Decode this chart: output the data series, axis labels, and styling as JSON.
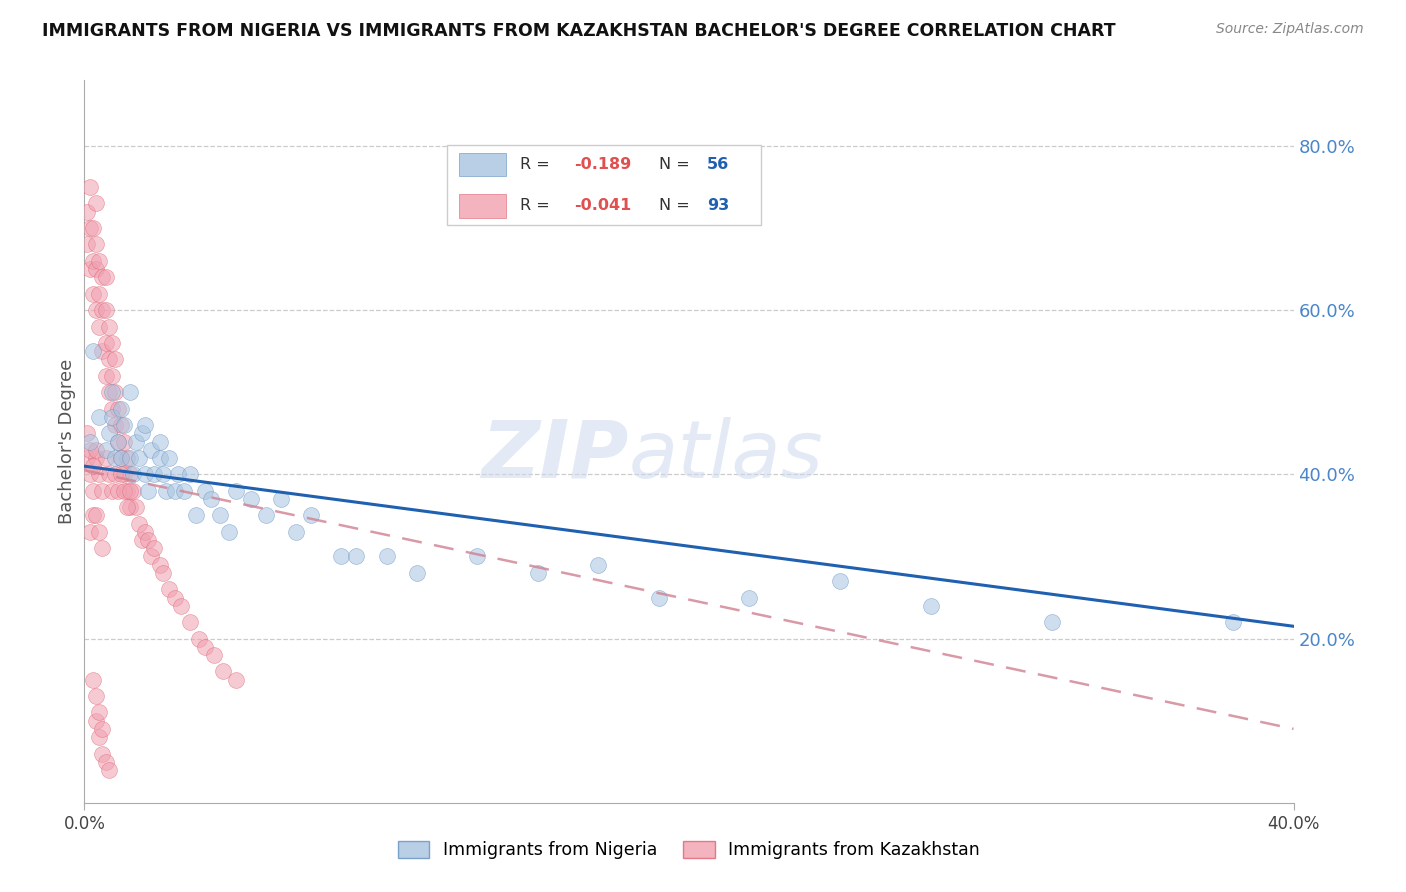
{
  "title": "IMMIGRANTS FROM NIGERIA VS IMMIGRANTS FROM KAZAKHSTAN BACHELOR'S DEGREE CORRELATION CHART",
  "source": "Source: ZipAtlas.com",
  "ylabel": "Bachelor's Degree",
  "right_yticks": [
    20.0,
    40.0,
    60.0,
    80.0
  ],
  "watermark": "ZIPatlas",
  "legend_nigeria": {
    "label": "Immigrants from Nigeria",
    "R": "-0.189",
    "N": "56",
    "color": "#a8c4e0"
  },
  "legend_kazakhstan": {
    "label": "Immigrants from Kazakhstan",
    "R": "-0.041",
    "N": "93",
    "color": "#f0a0b0"
  },
  "nigeria_scatter_x": [
    0.002,
    0.003,
    0.005,
    0.007,
    0.008,
    0.009,
    0.01,
    0.011,
    0.012,
    0.013,
    0.015,
    0.016,
    0.017,
    0.018,
    0.019,
    0.02,
    0.021,
    0.022,
    0.023,
    0.025,
    0.026,
    0.027,
    0.028,
    0.03,
    0.031,
    0.033,
    0.035,
    0.037,
    0.04,
    0.042,
    0.045,
    0.048,
    0.05,
    0.055,
    0.06,
    0.065,
    0.07,
    0.075,
    0.085,
    0.09,
    0.1,
    0.11,
    0.13,
    0.15,
    0.17,
    0.19,
    0.22,
    0.25,
    0.28,
    0.32,
    0.38,
    0.009,
    0.012,
    0.015,
    0.02,
    0.025
  ],
  "nigeria_scatter_y": [
    0.44,
    0.55,
    0.47,
    0.43,
    0.45,
    0.47,
    0.42,
    0.44,
    0.42,
    0.46,
    0.42,
    0.4,
    0.44,
    0.42,
    0.45,
    0.4,
    0.38,
    0.43,
    0.4,
    0.42,
    0.4,
    0.38,
    0.42,
    0.38,
    0.4,
    0.38,
    0.4,
    0.35,
    0.38,
    0.37,
    0.35,
    0.33,
    0.38,
    0.37,
    0.35,
    0.37,
    0.33,
    0.35,
    0.3,
    0.3,
    0.3,
    0.28,
    0.3,
    0.28,
    0.29,
    0.25,
    0.25,
    0.27,
    0.24,
    0.22,
    0.22,
    0.5,
    0.48,
    0.5,
    0.46,
    0.44
  ],
  "kazakhstan_scatter_x": [
    0.001,
    0.001,
    0.002,
    0.002,
    0.002,
    0.003,
    0.003,
    0.003,
    0.004,
    0.004,
    0.004,
    0.004,
    0.005,
    0.005,
    0.005,
    0.006,
    0.006,
    0.006,
    0.007,
    0.007,
    0.007,
    0.007,
    0.008,
    0.008,
    0.008,
    0.009,
    0.009,
    0.009,
    0.01,
    0.01,
    0.01,
    0.011,
    0.011,
    0.012,
    0.012,
    0.013,
    0.013,
    0.014,
    0.014,
    0.015,
    0.015,
    0.016,
    0.017,
    0.018,
    0.019,
    0.02,
    0.021,
    0.022,
    0.023,
    0.025,
    0.026,
    0.028,
    0.03,
    0.032,
    0.035,
    0.038,
    0.04,
    0.043,
    0.046,
    0.05,
    0.001,
    0.002,
    0.003,
    0.004,
    0.005,
    0.006,
    0.007,
    0.008,
    0.009,
    0.01,
    0.011,
    0.012,
    0.013,
    0.014,
    0.015,
    0.001,
    0.002,
    0.003,
    0.004,
    0.003,
    0.002,
    0.004,
    0.005,
    0.006,
    0.004,
    0.005,
    0.006,
    0.007,
    0.008,
    0.003,
    0.004,
    0.005,
    0.006
  ],
  "kazakhstan_scatter_y": [
    0.68,
    0.72,
    0.65,
    0.7,
    0.75,
    0.62,
    0.66,
    0.7,
    0.6,
    0.65,
    0.68,
    0.73,
    0.58,
    0.62,
    0.66,
    0.55,
    0.6,
    0.64,
    0.52,
    0.56,
    0.6,
    0.64,
    0.5,
    0.54,
    0.58,
    0.48,
    0.52,
    0.56,
    0.46,
    0.5,
    0.54,
    0.44,
    0.48,
    0.42,
    0.46,
    0.4,
    0.44,
    0.38,
    0.42,
    0.36,
    0.4,
    0.38,
    0.36,
    0.34,
    0.32,
    0.33,
    0.32,
    0.3,
    0.31,
    0.29,
    0.28,
    0.26,
    0.25,
    0.24,
    0.22,
    0.2,
    0.19,
    0.18,
    0.16,
    0.15,
    0.42,
    0.4,
    0.38,
    0.42,
    0.4,
    0.38,
    0.42,
    0.4,
    0.38,
    0.4,
    0.38,
    0.4,
    0.38,
    0.36,
    0.38,
    0.45,
    0.43,
    0.41,
    0.43,
    0.35,
    0.33,
    0.35,
    0.33,
    0.31,
    0.1,
    0.08,
    0.06,
    0.05,
    0.04,
    0.15,
    0.13,
    0.11,
    0.09
  ],
  "nigeria_line_x": [
    0.0,
    0.4
  ],
  "nigeria_line_y": [
    0.41,
    0.215
  ],
  "kazakhstan_line_x": [
    0.0,
    0.4
  ],
  "kazakhstan_line_y": [
    0.405,
    0.09
  ],
  "xmin": 0.0,
  "xmax": 0.4,
  "ymin": 0.0,
  "ymax": 0.88
}
